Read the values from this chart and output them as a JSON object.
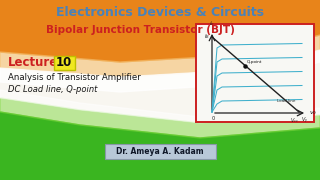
{
  "title": "Electronics Devices & Circuits",
  "subtitle": "Bipolar Junction Transistor (BJT)",
  "lecture_label": "Lecture",
  "lecture_num": "10",
  "line1": "Analysis of Transistor Amplifier",
  "line2": "DC Load line, Q-point",
  "author": "Dr. Ameya A. Kadam",
  "bg_color": "#f8f6f0",
  "orange_color": "#e8841a",
  "orange_light": "#f5c070",
  "green_color": "#3ab520",
  "green_light": "#80d840",
  "title_color": "#4a82b8",
  "subtitle_color": "#cc2020",
  "lecture_color": "#cc2020",
  "text_color": "#181818",
  "author_bg": "#b8c8d8",
  "author_border": "#8898a8",
  "lecture_box_color": "#f0e820",
  "lecture_box_border": "#c0c000",
  "graph_box_color": "#cc2020",
  "curve_color": "#40b0cc",
  "load_line_color": "#202020",
  "axis_color": "#202020",
  "graph_bg": "#f8f8f4"
}
